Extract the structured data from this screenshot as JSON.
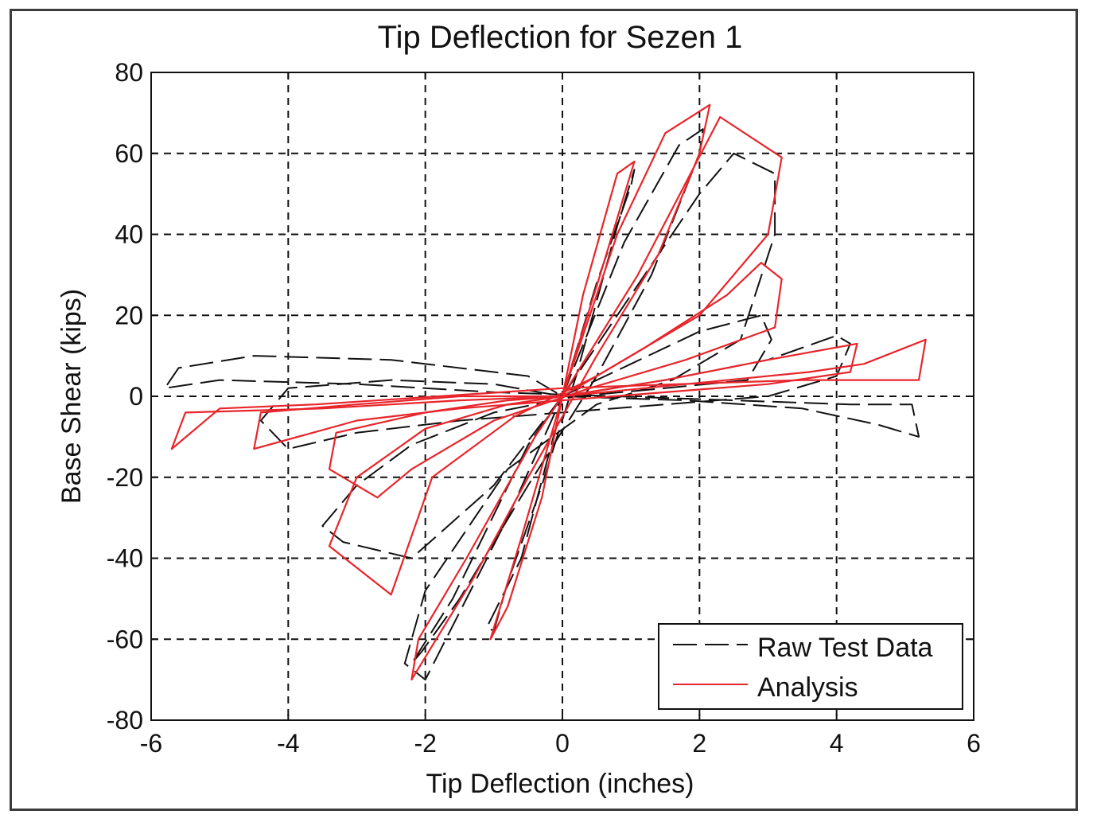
{
  "chart_data": {
    "type": "line",
    "title": "Tip Deflection for Sezen 1",
    "xlabel": "Tip Deflection (inches)",
    "ylabel": "Base Shear (kips)",
    "xlim": [
      -6,
      6
    ],
    "ylim": [
      -80,
      80
    ],
    "xticks": [
      -6,
      -4,
      -2,
      0,
      2,
      4,
      6
    ],
    "yticks": [
      -80,
      -60,
      -40,
      -20,
      0,
      20,
      40,
      60,
      80
    ],
    "xtick_labels": [
      "-6",
      "-4",
      "-2",
      "0",
      "2",
      "4",
      "6"
    ],
    "ytick_labels": [
      "-80",
      "-60",
      "-40",
      "-20",
      "0",
      "20",
      "40",
      "60",
      "80"
    ],
    "grid": true,
    "legend_position": "bottom-right",
    "series": [
      {
        "name": "Raw Test Data",
        "color": "#111111",
        "dash": "dashed",
        "loops": [
          {
            "x": [
              0,
              0.5,
              1.0,
              1.05,
              0.8,
              0.2,
              -0.3,
              -0.8,
              -1.0,
              -1.1,
              -0.6,
              -0.1,
              0
            ],
            "y": [
              0,
              28,
              52,
              56,
              42,
              5,
              -22,
              -46,
              -58,
              -57,
              -40,
              -8,
              0
            ]
          },
          {
            "x": [
              0,
              0.9,
              1.7,
              2.05,
              2.0,
              1.3,
              0.5,
              -0.5,
              -1.5,
              -2.05,
              -2.2,
              -1.6,
              -0.5,
              0
            ],
            "y": [
              0,
              38,
              62,
              66,
              60,
              30,
              5,
              -22,
              -50,
              -63,
              -66,
              -50,
              -12,
              0
            ]
          },
          {
            "x": [
              0,
              1.0,
              2.0,
              2.5,
              3.1,
              3.1,
              2.6,
              1.6,
              0.5,
              -0.8,
              -2.0,
              -2.3,
              -2.0,
              -0.8,
              0
            ],
            "y": [
              0,
              25,
              50,
              60,
              55,
              40,
              14,
              4,
              -2,
              -18,
              -48,
              -66,
              -70,
              -30,
              0
            ]
          },
          {
            "x": [
              0,
              1.0,
              2.0,
              2.9,
              3.05,
              2.7,
              1.5,
              0.2,
              -1.0,
              -2.2,
              -3.0,
              -3.5,
              -3.2,
              -2.2,
              -1.0,
              0
            ],
            "y": [
              0,
              8,
              16,
              20,
              14,
              4,
              2,
              0,
              -4,
              -12,
              -22,
              -32,
              -36,
              -40,
              -22,
              0
            ]
          },
          {
            "x": [
              0,
              1.5,
              3.0,
              4.0,
              4.2,
              4.0,
              3.0,
              1.5,
              0,
              -1.5,
              -3.0,
              -4.0,
              -4.4,
              -4.0,
              -2.5,
              -1.0,
              0
            ],
            "y": [
              0,
              4,
              9,
              15,
              13,
              5,
              0,
              -2,
              -4,
              -6,
              -9,
              -13,
              -6,
              2,
              4,
              3,
              0
            ]
          },
          {
            "x": [
              0,
              1.8,
              3.5,
              4.6,
              5.2,
              5.1,
              4.2,
              2.5,
              0.8,
              -1.0,
              -3.0,
              -5.0,
              -5.8,
              -5.6,
              -4.5,
              -2.5,
              -0.5,
              0
            ],
            "y": [
              0,
              -1,
              -3,
              -7,
              -10,
              -2,
              -2,
              -1,
              0,
              1,
              3,
              4,
              2,
              7,
              10,
              9,
              5,
              0
            ]
          }
        ]
      },
      {
        "name": "Analysis",
        "color": "#e8252b",
        "dash": "solid",
        "loops": [
          {
            "x": [
              0,
              0.55,
              1.05,
              0.8,
              0.3,
              -0.3,
              -0.8,
              -1.05,
              -0.6,
              0
            ],
            "y": [
              0,
              30,
              58,
              55,
              25,
              -25,
              -52,
              -60,
              -35,
              0
            ]
          },
          {
            "x": [
              0,
              0.8,
              1.5,
              2.15,
              2.0,
              1.4,
              0.5,
              -0.5,
              -1.3,
              -2.2,
              -2.1,
              -1.4,
              -0.4,
              0
            ],
            "y": [
              0,
              40,
              65,
              72,
              60,
              35,
              10,
              -20,
              -45,
              -70,
              -60,
              -40,
              -10,
              0
            ]
          },
          {
            "x": [
              0,
              1.1,
              2.3,
              3.2,
              3.0,
              2.0,
              0.5,
              -0.7,
              -1.9,
              -2.5,
              -3.4,
              -3.0,
              -2.0,
              -0.8,
              0
            ],
            "y": [
              0,
              30,
              69,
              59,
              40,
              20,
              5,
              -5,
              -20,
              -49,
              -37,
              -20,
              -8,
              -2,
              0
            ]
          },
          {
            "x": [
              0,
              1.2,
              2.4,
              2.9,
              3.2,
              3.1,
              1.8,
              0.4,
              -1.0,
              -2.2,
              -2.7,
              -3.4,
              -3.3,
              -2.0,
              -0.8,
              0
            ],
            "y": [
              0,
              12,
              25,
              33,
              29,
              17,
              9,
              2,
              -6,
              -18,
              -25,
              -18,
              -9,
              -4,
              -1,
              0
            ]
          },
          {
            "x": [
              0,
              1.5,
              3.0,
              4.3,
              4.2,
              3.0,
              1.5,
              0,
              -1.5,
              -3.0,
              -4.5,
              -4.4,
              -3.0,
              -1.5,
              0
            ],
            "y": [
              0,
              4,
              9,
              13,
              6,
              3,
              1,
              -1,
              -3,
              -6,
              -13,
              -4,
              -2,
              0,
              0
            ]
          },
          {
            "x": [
              0,
              1.8,
              3.6,
              4.4,
              5.3,
              5.2,
              3.5,
              1.7,
              0,
              -1.8,
              -3.6,
              -5.0,
              -5.7,
              -5.5,
              -3.5,
              -1.5,
              0
            ],
            "y": [
              0,
              3,
              6,
              8,
              14,
              4,
              4,
              3,
              2,
              0,
              -2,
              -3,
              -13,
              -4,
              -3,
              -1,
              0
            ]
          }
        ]
      }
    ]
  }
}
